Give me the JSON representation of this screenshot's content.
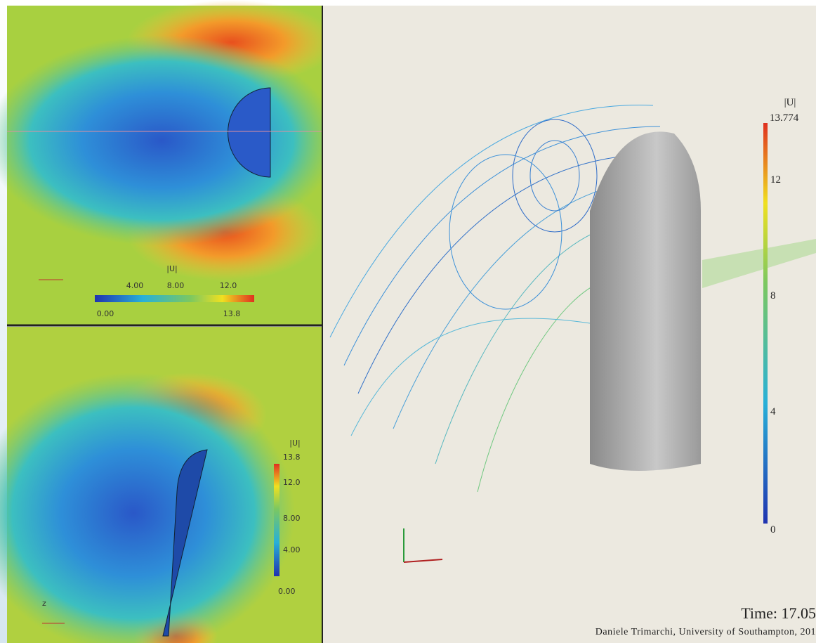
{
  "top_panel": {
    "legend_title": "|U|",
    "ticks": [
      "4.00",
      "8.00",
      "12.0"
    ],
    "min": "0.00",
    "max": "13.8"
  },
  "bottom_panel": {
    "legend_title": "|U|",
    "ticks": [
      "13.8",
      "12.0",
      "8.00",
      "4.00",
      "0.00"
    ],
    "axis_label": "z"
  },
  "right_panel": {
    "legend_title": "|U|",
    "max": "13.774",
    "ticks": [
      "12",
      "8",
      "4",
      "0"
    ],
    "time": "Time: 17.05",
    "credit": "Daniele Trimarchi, University of Southampton, 201"
  }
}
